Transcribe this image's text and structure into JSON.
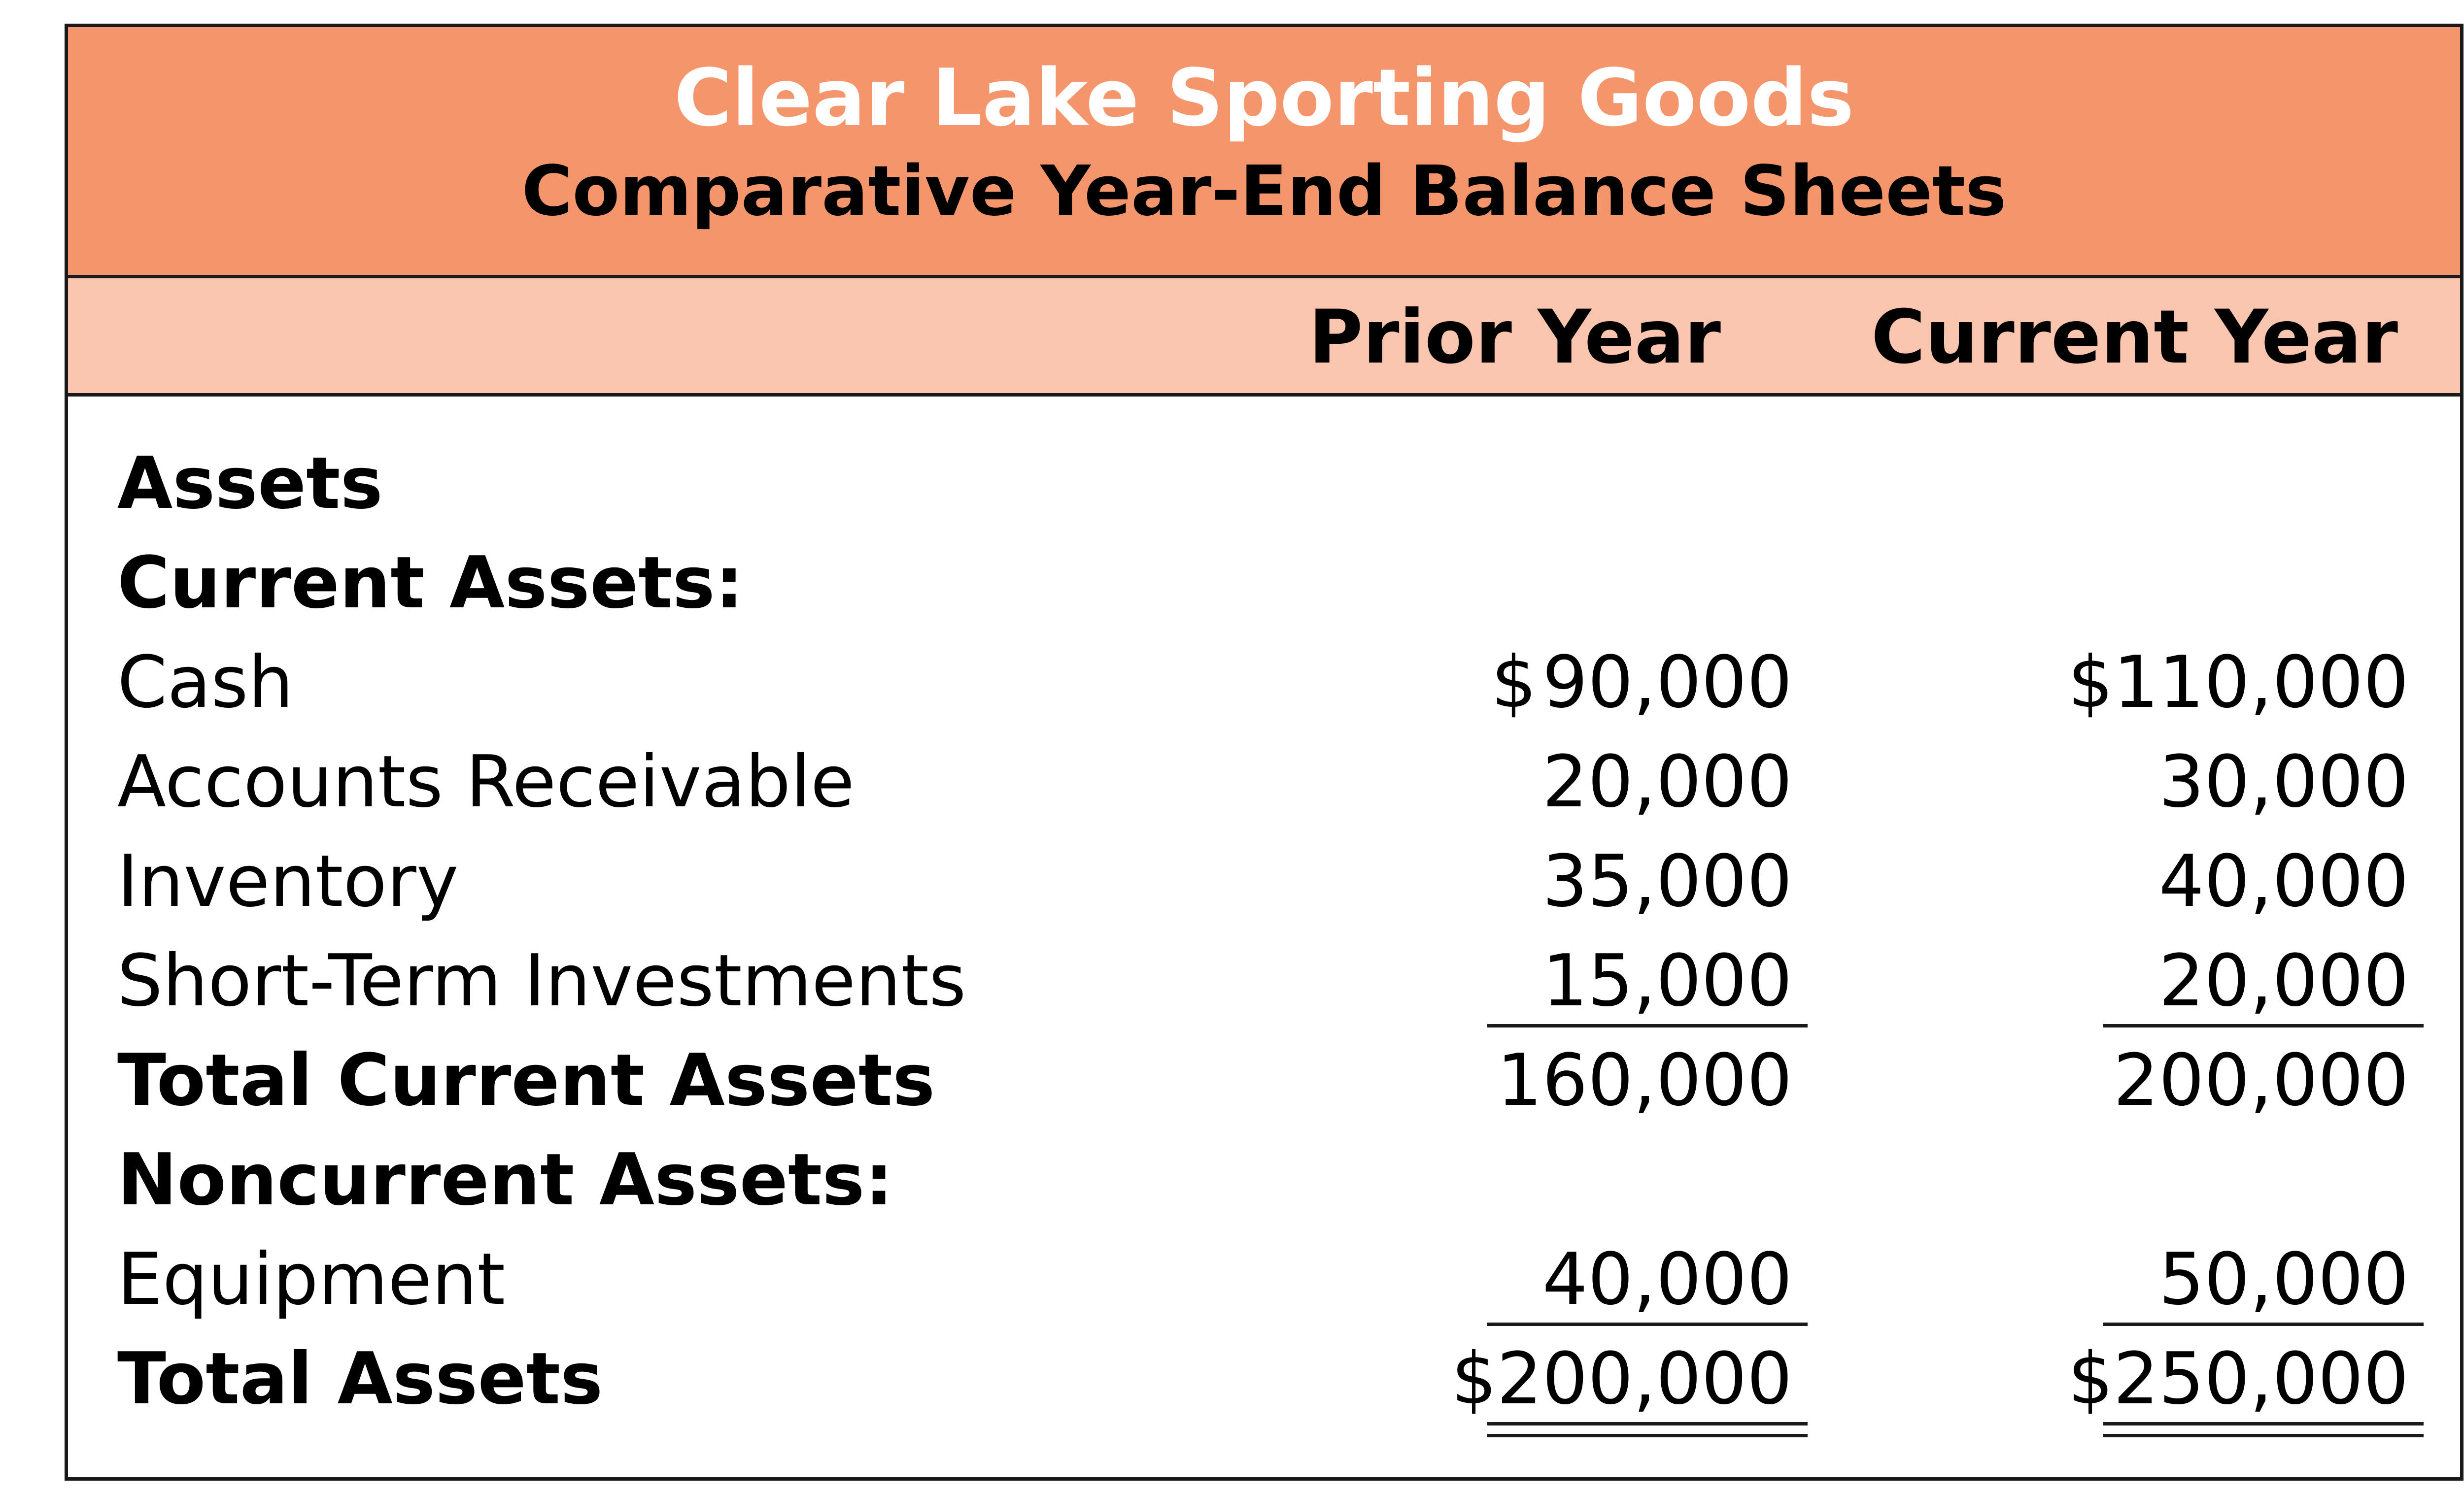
{
  "header": {
    "company": "Clear Lake Sporting Goods",
    "statement": "Comparative Year-End Balance Sheets"
  },
  "columns": {
    "prior": "Prior Year",
    "current": "Current Year"
  },
  "colors": {
    "title_band": "#f4956b",
    "header_band": "#f9c5ae",
    "title_text": "#ffffff"
  },
  "rows": [
    {
      "label": "Assets",
      "bold": true,
      "prior": "",
      "current": ""
    },
    {
      "label": "Current Assets:",
      "bold": true,
      "prior": "",
      "current": ""
    },
    {
      "label": "Cash",
      "bold": false,
      "prior_currency": "$",
      "prior": "90,000",
      "current": "$110,000"
    },
    {
      "label": "Accounts Receivable",
      "bold": false,
      "prior": "20,000",
      "current": "30,000"
    },
    {
      "label": "Inventory",
      "bold": false,
      "prior": "35,000",
      "current": "40,000"
    },
    {
      "label": "Short-Term Investments",
      "bold": false,
      "prior": "15,000",
      "current": "20,000"
    },
    {
      "label": "Total Current Assets",
      "bold": true,
      "prior": "160,000",
      "current": "200,000"
    },
    {
      "label": "Noncurrent Assets:",
      "bold": true,
      "prior": "",
      "current": ""
    },
    {
      "label": "Equipment",
      "bold": false,
      "prior": "40,000",
      "current": "50,000"
    },
    {
      "label": "Total Assets",
      "bold": true,
      "prior": "$200,000",
      "current": "$250,000"
    }
  ]
}
